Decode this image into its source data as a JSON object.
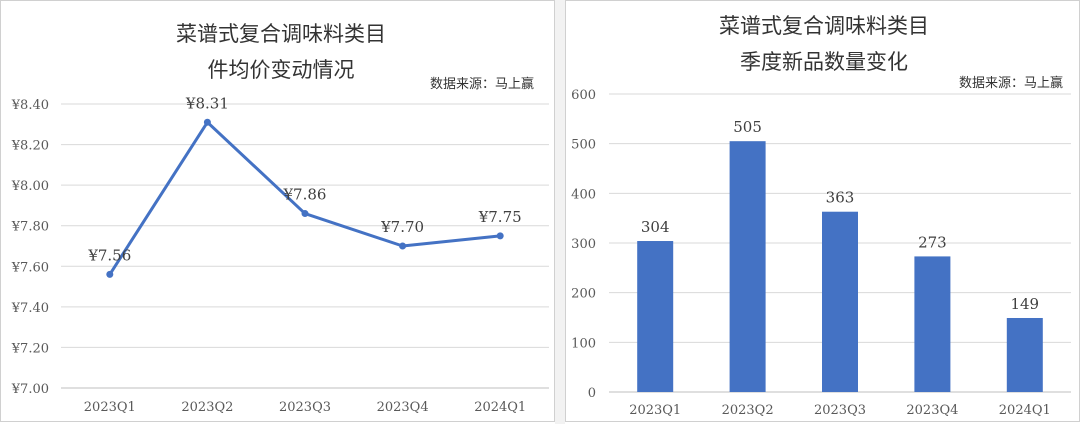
{
  "chart_data": [
    {
      "type": "line",
      "title": [
        "菜谱式复合调味料类目",
        "件均价变动情况"
      ],
      "source": "数据来源：马上赢",
      "categories": [
        "2023Q1",
        "2023Q2",
        "2023Q3",
        "2023Q4",
        "2024Q1"
      ],
      "series": [
        {
          "values": [
            7.56,
            8.31,
            7.86,
            7.7,
            7.75
          ],
          "labels": [
            "¥7.56",
            "¥8.31",
            "¥7.86",
            "¥7.70",
            "¥7.75"
          ]
        }
      ],
      "yticks": [
        "¥7.00",
        "¥7.20",
        "¥7.40",
        "¥7.60",
        "¥7.80",
        "¥8.00",
        "¥8.20",
        "¥8.40"
      ],
      "ylim": [
        7.0,
        8.4
      ],
      "grid": true,
      "color": "#4472c4"
    },
    {
      "type": "bar",
      "title": [
        "菜谱式复合调味料类目",
        "季度新品数量变化"
      ],
      "source": "数据来源：马上赢",
      "categories": [
        "2023Q1",
        "2023Q2",
        "2023Q3",
        "2023Q4",
        "2024Q1"
      ],
      "values": [
        304,
        505,
        363,
        273,
        149
      ],
      "labels": [
        "304",
        "505",
        "363",
        "273",
        "149"
      ],
      "yticks": [
        "0",
        "100",
        "200",
        "300",
        "400",
        "500",
        "600"
      ],
      "ylim": [
        0,
        600
      ],
      "grid": true,
      "color": "#4472c4"
    }
  ]
}
